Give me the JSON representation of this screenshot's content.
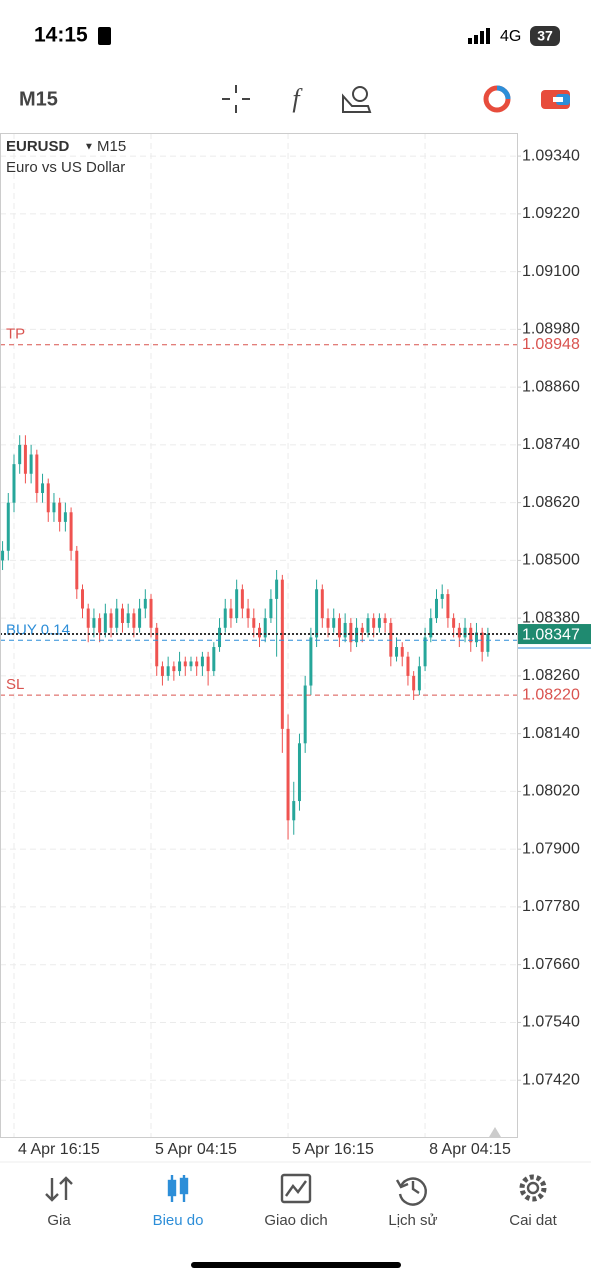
{
  "status_bar": {
    "time": "14:15",
    "network": "4G",
    "battery": "37"
  },
  "toolbar": {
    "timeframe": "M15"
  },
  "chart_data": {
    "type": "candlestick",
    "symbol": "EURUSD",
    "timeframe": "M15",
    "description": "Euro vs US Dollar",
    "up_color": "#26a69a",
    "down_color": "#ef5350",
    "grid": true,
    "xlim": [
      -0.45,
      90.1
    ],
    "xticks": [
      {
        "value": 2,
        "label": "4 Apr 16:15"
      },
      {
        "value": 26,
        "label": "5 Apr 04:15"
      },
      {
        "value": 50,
        "label": "5 Apr 16:15"
      },
      {
        "value": 74,
        "label": "8 Apr 04:15"
      }
    ],
    "ylim": [
      1.07302,
      1.09388
    ],
    "yticks": [
      {
        "value": 1.0934,
        "label": "1.09340"
      },
      {
        "value": 1.0922,
        "label": "1.09220"
      },
      {
        "value": 1.091,
        "label": "1.09100"
      },
      {
        "value": 1.0898,
        "label": "1.08980"
      },
      {
        "value": 1.0886,
        "label": "1.08860"
      },
      {
        "value": 1.0874,
        "label": "1.08740"
      },
      {
        "value": 1.0862,
        "label": "1.08620"
      },
      {
        "value": 1.085,
        "label": "1.08500"
      },
      {
        "value": 1.0838,
        "label": "1.08380"
      },
      {
        "value": 1.0826,
        "label": "1.08260"
      },
      {
        "value": 1.0814,
        "label": "1.08140"
      },
      {
        "value": 1.0802,
        "label": "1.08020"
      },
      {
        "value": 1.079,
        "label": "1.07900"
      },
      {
        "value": 1.0778,
        "label": "1.07780"
      },
      {
        "value": 1.0766,
        "label": "1.07660"
      },
      {
        "value": 1.0754,
        "label": "1.07540"
      },
      {
        "value": 1.0742,
        "label": "1.07420"
      }
    ],
    "price_lines": [
      {
        "name": "TP",
        "value": 1.08948,
        "color": "#d9534f"
      },
      {
        "name": "SL",
        "value": 1.0822,
        "value_label": "1.08220",
        "color": "#d9534f"
      },
      {
        "name": "BUY 0.14",
        "value": 1.08334,
        "color": "#2d8ed8"
      }
    ],
    "current_price": {
      "value": 1.08347,
      "color": "#1f8a70"
    },
    "candles": [
      [
        1.085,
        1.0854,
        1.0848,
        1.0852
      ],
      [
        1.0852,
        1.0864,
        1.085,
        1.0862
      ],
      [
        1.0862,
        1.0872,
        1.086,
        1.087
      ],
      [
        1.087,
        1.0876,
        1.0868,
        1.0874
      ],
      [
        1.0874,
        1.0876,
        1.0866,
        1.0868
      ],
      [
        1.0868,
        1.0874,
        1.0866,
        1.0872
      ],
      [
        1.0872,
        1.0873,
        1.0862,
        1.0864
      ],
      [
        1.0864,
        1.0868,
        1.0862,
        1.0866
      ],
      [
        1.0866,
        1.0867,
        1.0858,
        1.086
      ],
      [
        1.086,
        1.0864,
        1.0858,
        1.0862
      ],
      [
        1.0862,
        1.0863,
        1.0856,
        1.0858
      ],
      [
        1.0858,
        1.0862,
        1.0856,
        1.086
      ],
      [
        1.086,
        1.0861,
        1.085,
        1.0852
      ],
      [
        1.0852,
        1.0853,
        1.0842,
        1.0844
      ],
      [
        1.0844,
        1.0845,
        1.0838,
        1.084
      ],
      [
        1.084,
        1.0841,
        1.0833,
        1.0836
      ],
      [
        1.0836,
        1.084,
        1.0834,
        1.0838
      ],
      [
        1.0838,
        1.0839,
        1.0833,
        1.0835
      ],
      [
        1.0835,
        1.0841,
        1.0834,
        1.0839
      ],
      [
        1.0839,
        1.084,
        1.0834,
        1.0836
      ],
      [
        1.0836,
        1.0842,
        1.0835,
        1.084
      ],
      [
        1.084,
        1.0841,
        1.0835,
        1.0837
      ],
      [
        1.0837,
        1.0841,
        1.0836,
        1.0839
      ],
      [
        1.0839,
        1.084,
        1.0834,
        1.0836
      ],
      [
        1.0836,
        1.0842,
        1.0835,
        1.084
      ],
      [
        1.084,
        1.0844,
        1.0838,
        1.0842
      ],
      [
        1.0842,
        1.0843,
        1.0834,
        1.0836
      ],
      [
        1.0836,
        1.0837,
        1.0826,
        1.0828
      ],
      [
        1.0828,
        1.0829,
        1.0824,
        1.0826
      ],
      [
        1.0826,
        1.083,
        1.0825,
        1.0828
      ],
      [
        1.0828,
        1.0829,
        1.0825,
        1.0827
      ],
      [
        1.0827,
        1.0831,
        1.0826,
        1.0829
      ],
      [
        1.0829,
        1.083,
        1.0826,
        1.0828
      ],
      [
        1.0828,
        1.083,
        1.0827,
        1.0829
      ],
      [
        1.0829,
        1.083,
        1.0826,
        1.0828
      ],
      [
        1.0828,
        1.0831,
        1.0826,
        1.083
      ],
      [
        1.083,
        1.0831,
        1.0824,
        1.0827
      ],
      [
        1.0827,
        1.0833,
        1.0826,
        1.0832
      ],
      [
        1.0832,
        1.0838,
        1.0831,
        1.0836
      ],
      [
        1.0836,
        1.0842,
        1.0835,
        1.084
      ],
      [
        1.084,
        1.0842,
        1.0836,
        1.0838
      ],
      [
        1.0838,
        1.0846,
        1.0837,
        1.0844
      ],
      [
        1.0844,
        1.0845,
        1.0838,
        1.084
      ],
      [
        1.084,
        1.0842,
        1.0836,
        1.0838
      ],
      [
        1.0838,
        1.084,
        1.0834,
        1.0836
      ],
      [
        1.0836,
        1.0837,
        1.0832,
        1.0834
      ],
      [
        1.0834,
        1.084,
        1.0833,
        1.0838
      ],
      [
        1.0838,
        1.0844,
        1.0837,
        1.0842
      ],
      [
        1.0842,
        1.0848,
        1.083,
        1.0846
      ],
      [
        1.0846,
        1.0847,
        1.081,
        1.0815
      ],
      [
        1.0815,
        1.0818,
        1.0792,
        1.0796
      ],
      [
        1.0796,
        1.0804,
        1.0793,
        1.08
      ],
      [
        1.08,
        1.0814,
        1.0798,
        1.0812
      ],
      [
        1.0812,
        1.0826,
        1.081,
        1.0824
      ],
      [
        1.0824,
        1.0836,
        1.0822,
        1.0834
      ],
      [
        1.0834,
        1.0846,
        1.0832,
        1.0844
      ],
      [
        1.0844,
        1.0845,
        1.0836,
        1.0838
      ],
      [
        1.0838,
        1.084,
        1.0834,
        1.0836
      ],
      [
        1.0836,
        1.084,
        1.0835,
        1.0838
      ],
      [
        1.0838,
        1.0839,
        1.0832,
        1.0834
      ],
      [
        1.0834,
        1.0839,
        1.0833,
        1.0837
      ],
      [
        1.0837,
        1.0838,
        1.0831,
        1.0833
      ],
      [
        1.0833,
        1.0838,
        1.0832,
        1.0836
      ],
      [
        1.0836,
        1.0837,
        1.0833,
        1.0835
      ],
      [
        1.0835,
        1.0839,
        1.0834,
        1.0838
      ],
      [
        1.0838,
        1.0839,
        1.0834,
        1.0836
      ],
      [
        1.0836,
        1.0839,
        1.0835,
        1.0838
      ],
      [
        1.0838,
        1.0839,
        1.0835,
        1.0837
      ],
      [
        1.0837,
        1.0838,
        1.0828,
        1.083
      ],
      [
        1.083,
        1.0834,
        1.0829,
        1.0832
      ],
      [
        1.0832,
        1.0833,
        1.0828,
        1.083
      ],
      [
        1.083,
        1.0831,
        1.0824,
        1.0826
      ],
      [
        1.0826,
        1.0827,
        1.0821,
        1.0823
      ],
      [
        1.0823,
        1.083,
        1.0822,
        1.0828
      ],
      [
        1.0828,
        1.0836,
        1.0827,
        1.0834
      ],
      [
        1.0834,
        1.084,
        1.0833,
        1.0838
      ],
      [
        1.0838,
        1.0844,
        1.0837,
        1.0842
      ],
      [
        1.0842,
        1.0845,
        1.084,
        1.0843
      ],
      [
        1.0843,
        1.0844,
        1.0836,
        1.0838
      ],
      [
        1.0838,
        1.0839,
        1.0834,
        1.0836
      ],
      [
        1.0836,
        1.0837,
        1.0832,
        1.0834
      ],
      [
        1.0834,
        1.0838,
        1.0833,
        1.0836
      ],
      [
        1.0836,
        1.0837,
        1.0831,
        1.0833
      ],
      [
        1.0833,
        1.0837,
        1.0832,
        1.0835
      ],
      [
        1.0835,
        1.0836,
        1.0829,
        1.0831
      ],
      [
        1.0831,
        1.0836,
        1.083,
        1.08347
      ]
    ]
  },
  "nav": {
    "items": [
      "Gia",
      "Bieu do",
      "Giao dich",
      "Lịch sử",
      "Cai dat"
    ],
    "active": 1
  }
}
